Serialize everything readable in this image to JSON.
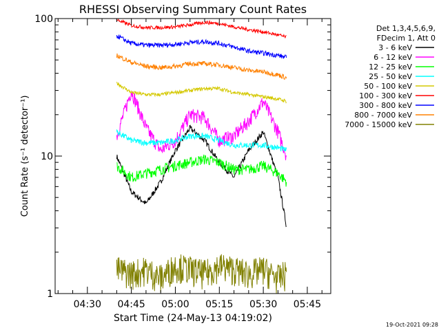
{
  "chart_data": {
    "type": "line",
    "title": "RHESSI Observing Summary Count Rates",
    "xlabel": "Start Time (24-May-13 04:19:02)",
    "ylabel": "Count Rate (s⁻¹ detector⁻¹)",
    "yscale": "log",
    "ylim": [
      1,
      100
    ],
    "xlim_minutes": [
      259,
      353
    ],
    "grid": false,
    "x_ticks": [
      "04:30",
      "04:45",
      "05:00",
      "05:15",
      "05:30",
      "05:45"
    ],
    "y_ticks": [
      "1",
      "10",
      "100"
    ],
    "legend_placement": "right",
    "legend_header": [
      "Det 1,3,4,5,6,9,",
      "FDecim 1, Att 0"
    ],
    "date_stamp": "19-Oct-2021 09:28",
    "series": [
      {
        "name": "3 - 6 keV",
        "color": "#000000",
        "x": [
          "04:40",
          "04:45",
          "04:50",
          "04:55",
          "05:00",
          "05:05",
          "05:10",
          "05:15",
          "05:20",
          "05:25",
          "05:30",
          "05:35",
          "05:38"
        ],
        "y": [
          10,
          5.5,
          4.5,
          6.5,
          11,
          16,
          13,
          9,
          7,
          11,
          15,
          7,
          3
        ]
      },
      {
        "name": "6 - 12 keV",
        "color": "#ff00ff",
        "x": [
          "04:40",
          "04:45",
          "04:50",
          "04:55",
          "05:00",
          "05:05",
          "05:10",
          "05:15",
          "05:20",
          "05:25",
          "05:30",
          "05:35",
          "05:38"
        ],
        "y": [
          14,
          30,
          16,
          11,
          13,
          20,
          19,
          13,
          14,
          18,
          25,
          15,
          10
        ]
      },
      {
        "name": "12 - 25 keV",
        "color": "#00ff00",
        "x": [
          "04:40",
          "04:45",
          "04:50",
          "04:55",
          "05:00",
          "05:05",
          "05:10",
          "05:15",
          "05:20",
          "05:25",
          "05:30",
          "05:35",
          "05:38"
        ],
        "y": [
          8.5,
          7,
          7.5,
          8,
          8.5,
          9,
          9.5,
          9,
          8,
          8,
          8.5,
          7.5,
          6.5
        ]
      },
      {
        "name": "25 - 50 keV",
        "color": "#00ffff",
        "x": [
          "04:40",
          "04:45",
          "04:50",
          "04:55",
          "05:00",
          "05:05",
          "05:10",
          "05:15",
          "05:20",
          "05:25",
          "05:30",
          "05:35",
          "05:38"
        ],
        "y": [
          15,
          13,
          12.5,
          12.5,
          13,
          14,
          14,
          13,
          12,
          12,
          12,
          11.5,
          11
        ]
      },
      {
        "name": "50 - 100 keV",
        "color": "#d4c800",
        "x": [
          "04:40",
          "04:45",
          "04:50",
          "04:55",
          "05:00",
          "05:05",
          "05:10",
          "05:15",
          "05:20",
          "05:25",
          "05:30",
          "05:35",
          "05:38"
        ],
        "y": [
          34,
          29,
          28,
          28,
          29,
          30,
          31,
          31,
          29,
          28,
          27,
          26,
          25
        ]
      },
      {
        "name": "100 - 300 keV",
        "color": "#ff0000",
        "x": [
          "04:40",
          "04:45",
          "04:50",
          "04:55",
          "05:00",
          "05:05",
          "05:10",
          "05:15",
          "05:20",
          "05:25",
          "05:30",
          "05:35",
          "05:38"
        ],
        "y": [
          98,
          89,
          86,
          86,
          87,
          90,
          94,
          92,
          87,
          83,
          80,
          76,
          73
        ]
      },
      {
        "name": "300 - 800 keV",
        "color": "#0000ff",
        "x": [
          "04:40",
          "04:45",
          "04:50",
          "04:55",
          "05:00",
          "05:05",
          "05:10",
          "05:15",
          "05:20",
          "05:25",
          "05:30",
          "05:35",
          "05:38"
        ],
        "y": [
          75,
          66,
          64,
          64,
          65,
          67,
          68,
          66,
          62,
          58,
          56,
          54,
          52
        ]
      },
      {
        "name": "800 - 7000 keV",
        "color": "#ff8000",
        "x": [
          "04:40",
          "04:45",
          "04:50",
          "04:55",
          "05:00",
          "05:05",
          "05:10",
          "05:15",
          "05:20",
          "05:25",
          "05:30",
          "05:35",
          "05:38"
        ],
        "y": [
          54,
          48,
          45,
          44,
          45,
          47,
          47,
          46,
          44,
          42,
          41,
          39,
          37
        ]
      },
      {
        "name": "7000 - 15000 keV",
        "color": "#808000",
        "x": [
          "04:40",
          "04:45",
          "04:50",
          "04:55",
          "05:00",
          "05:05",
          "05:10",
          "05:15",
          "05:20",
          "05:25",
          "05:30",
          "05:35",
          "05:38"
        ],
        "y": [
          1.5,
          1.4,
          1.5,
          1.3,
          1.6,
          1.5,
          1.4,
          1.6,
          1.5,
          1.4,
          1.5,
          1.3,
          1.4
        ]
      }
    ]
  }
}
